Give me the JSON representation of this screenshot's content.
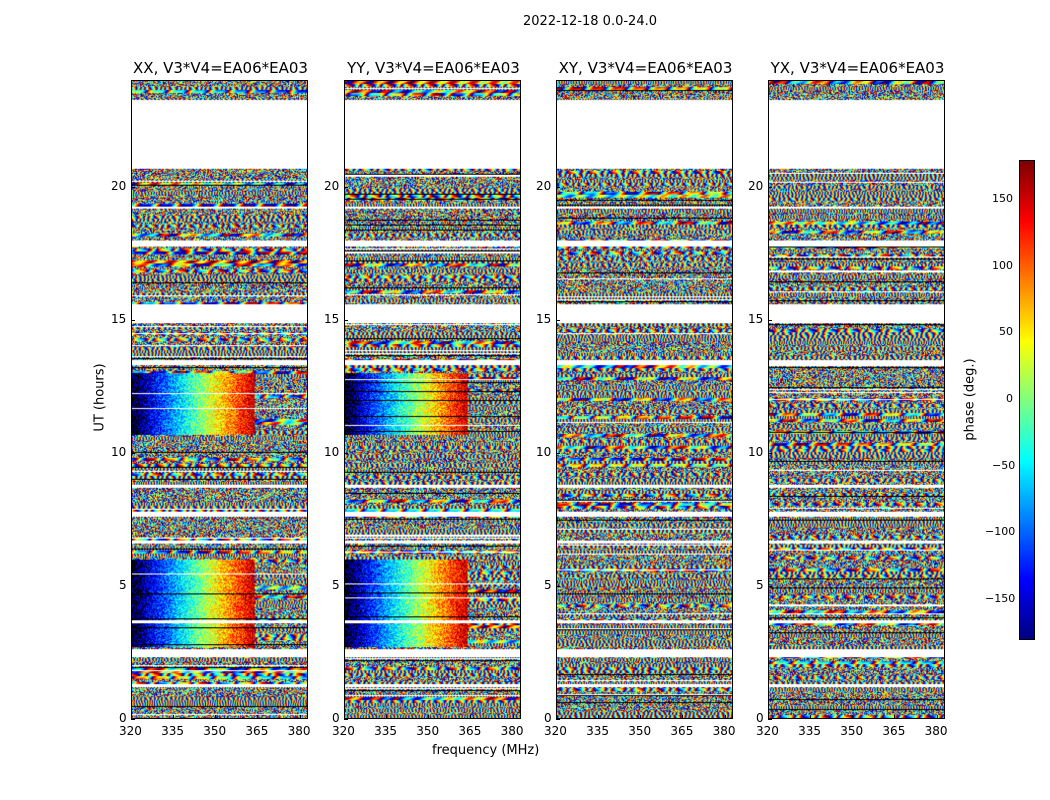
{
  "chart_data": {
    "type": "heatmap",
    "title": "2022-12-18 0.0-24.0",
    "xlabel": "frequency (MHz)",
    "ylabel": "UT (hours)",
    "xlim": [
      320,
      383
    ],
    "ylim": [
      0,
      24
    ],
    "xticks": [
      320,
      335,
      350,
      365,
      380
    ],
    "yticks": [
      0,
      5,
      10,
      15,
      20
    ],
    "colormap": "jet",
    "colorbar": {
      "label": "phase (deg.)",
      "range": [
        -180,
        180
      ],
      "ticks": [
        -150,
        -100,
        -50,
        0,
        50,
        100,
        150
      ]
    },
    "flagged_hours": [
      [
        20.7,
        23.3
      ],
      [
        14.9,
        15.6
      ],
      [
        2.3,
        2.6
      ],
      [
        13.3,
        13.5
      ],
      [
        17.8,
        18.0
      ],
      [
        7.6,
        7.8
      ],
      [
        6.6,
        6.7
      ],
      [
        1.2,
        1.3
      ],
      [
        8.7,
        8.8
      ],
      [
        19.2,
        19.3
      ],
      [
        3.6,
        3.7
      ]
    ],
    "panels": [
      {
        "title": "XX, V3*V4=EA06*EA03",
        "coherent": true
      },
      {
        "title": "YY, V3*V4=EA06*EA03",
        "coherent": true
      },
      {
        "title": "XY, V3*V4=EA06*EA03",
        "coherent": false
      },
      {
        "title": "YX, V3*V4=EA06*EA03",
        "coherent": false
      }
    ]
  }
}
